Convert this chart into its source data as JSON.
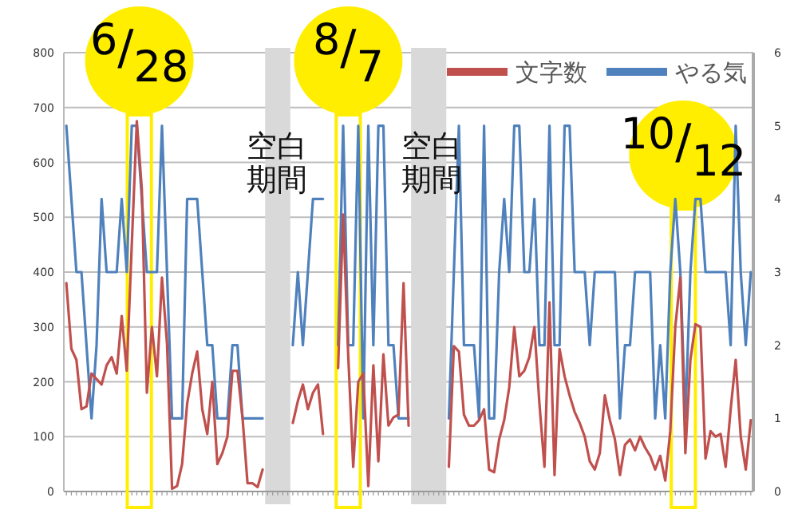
{
  "chart_data": {
    "type": "line",
    "categories": [
      null,
      null,
      null,
      null,
      null,
      null,
      null,
      null,
      null,
      null,
      null,
      null,
      null,
      null,
      null,
      null,
      null,
      null,
      null,
      null,
      null,
      null,
      null,
      null,
      null,
      null,
      null,
      null,
      null,
      null,
      null,
      null,
      null,
      null,
      null,
      null,
      null,
      null,
      null,
      null,
      null,
      null,
      null,
      null,
      null,
      null,
      null,
      null,
      null,
      null,
      null,
      null,
      null,
      null,
      null,
      null,
      null,
      null,
      null,
      null,
      null,
      null,
      null,
      null,
      null,
      null,
      null,
      null,
      null,
      null,
      null,
      null,
      null,
      null,
      null,
      null,
      null,
      null,
      null,
      null,
      null,
      null,
      null,
      null,
      null,
      null,
      null,
      null,
      null,
      null,
      null,
      null,
      null,
      null,
      null,
      null,
      null,
      null,
      null,
      null,
      null,
      null,
      null,
      null,
      null,
      null,
      null,
      null,
      null,
      null,
      null,
      null,
      null,
      null,
      null,
      null,
      null,
      null,
      null,
      null,
      null,
      null,
      null,
      null,
      null,
      null,
      null,
      null,
      null,
      null,
      null,
      null,
      null,
      null,
      null,
      null,
      null
    ],
    "series": [
      {
        "name": "文字数",
        "color": "#c0504d",
        "values": [
          380,
          260,
          240,
          150,
          155,
          215,
          205,
          195,
          230,
          245,
          215,
          320,
          220,
          450,
          675,
          550,
          180,
          300,
          210,
          390,
          270,
          5,
          10,
          50,
          160,
          215,
          255,
          150,
          105,
          200,
          50,
          70,
          100,
          220,
          220,
          135,
          15,
          15,
          8,
          40,
          null,
          null,
          null,
          null,
          null,
          125,
          165,
          195,
          150,
          180,
          195,
          105,
          null,
          null,
          225,
          505,
          250,
          45,
          200,
          215,
          10,
          230,
          55,
          250,
          120,
          135,
          140,
          380,
          120,
          null,
          null,
          null,
          null,
          null,
          null,
          null,
          45,
          265,
          255,
          140,
          120,
          120,
          130,
          150,
          40,
          35,
          95,
          130,
          190,
          300,
          210,
          220,
          245,
          300,
          160,
          45,
          345,
          30,
          260,
          210,
          175,
          145,
          125,
          100,
          55,
          40,
          70,
          175,
          130,
          95,
          30,
          85,
          95,
          75,
          100,
          80,
          65,
          40,
          65,
          20,
          110,
          300,
          390,
          70,
          240,
          305,
          300,
          60,
          110,
          100,
          105,
          45,
          150,
          240,
          100,
          40,
          130
        ]
      },
      {
        "name": "やる気",
        "color": "#4f81bd",
        "axis": "y2",
        "values": [
          5,
          4,
          3,
          3,
          2,
          1,
          2,
          4,
          3,
          3,
          3,
          4,
          3,
          5,
          5,
          4,
          3,
          3,
          3,
          5,
          3,
          1,
          1,
          1,
          4,
          4,
          4,
          3,
          2,
          2,
          1,
          1,
          1,
          2,
          2,
          1,
          1,
          1,
          1,
          1,
          null,
          null,
          null,
          null,
          null,
          2,
          3,
          2,
          3,
          4,
          4,
          4,
          null,
          null,
          2,
          5,
          2,
          2,
          5,
          1,
          5,
          2,
          5,
          5,
          2,
          2,
          1,
          1,
          1,
          null,
          null,
          null,
          null,
          null,
          null,
          null,
          1,
          3,
          5,
          2,
          2,
          2,
          1,
          5,
          1,
          1,
          3,
          4,
          3,
          5,
          5,
          3,
          3,
          4,
          2,
          2,
          5,
          2,
          2,
          5,
          5,
          3,
          3,
          3,
          2,
          3,
          3,
          3,
          3,
          3,
          1,
          2,
          2,
          3,
          3,
          3,
          3,
          1,
          2,
          1,
          3,
          4,
          3,
          1,
          3,
          4,
          4,
          3,
          3,
          3,
          3,
          3,
          2,
          5,
          3,
          2,
          3
        ]
      }
    ],
    "ylim": [
      0,
      800
    ],
    "yticks": [
      0,
      100,
      200,
      300,
      400,
      500,
      600,
      700,
      800
    ],
    "y2lim": [
      0,
      6
    ],
    "y2ticks": [
      0,
      1,
      2,
      3,
      4,
      5,
      6
    ],
    "grid": "y",
    "legend": "top right",
    "annotations": [
      "空白期間",
      "空白期間",
      "6/28",
      "8/7",
      "10/12"
    ]
  }
}
